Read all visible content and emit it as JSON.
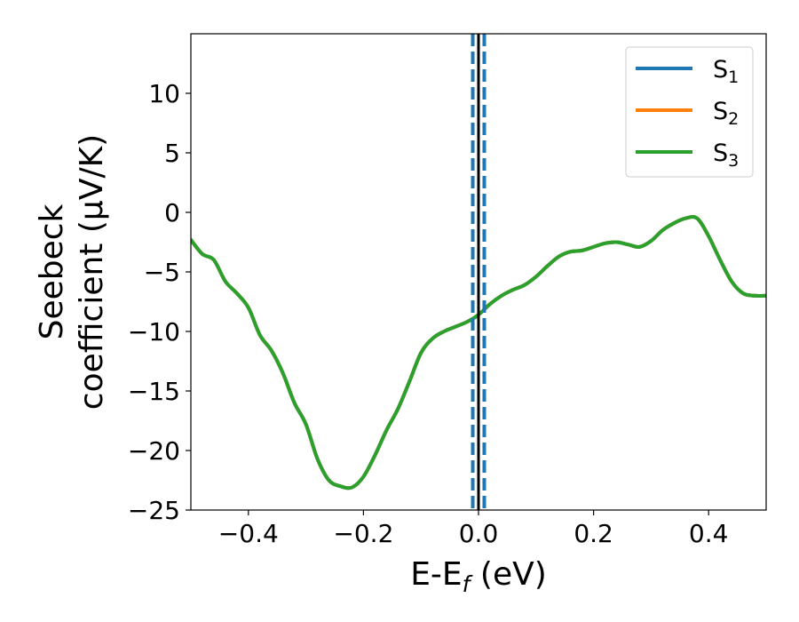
{
  "chart_data": {
    "type": "line",
    "xlabel": {
      "main": "E-E",
      "sub": "f",
      "tail": " (eV)"
    },
    "ylabel": {
      "line1": "Seebeck",
      "line2": "coefficient  (μV/K)"
    },
    "xlim": [
      -0.5,
      0.5
    ],
    "ylim": [
      -25,
      15
    ],
    "xticks": [
      -0.4,
      -0.2,
      0.0,
      0.2,
      0.4
    ],
    "xtick_labels": [
      "−0.4",
      "−0.2",
      "0.0",
      "0.2",
      "0.4"
    ],
    "yticks": [
      -25,
      -20,
      -15,
      -10,
      -5,
      0,
      5,
      10
    ],
    "ytick_labels": [
      "−25",
      "−20",
      "−15",
      "−10",
      "−5",
      "0",
      "5",
      "10"
    ],
    "grid": false,
    "legend_position": "top-right",
    "series": [
      {
        "name": "S",
        "sub": "1",
        "color": "#1f77b4",
        "same_as": "S3"
      },
      {
        "name": "S",
        "sub": "2",
        "color": "#ff7f0e",
        "same_as": "S3"
      },
      {
        "name": "S",
        "sub": "3",
        "color": "#2ca02c",
        "x": [
          -0.5,
          -0.48,
          -0.46,
          -0.44,
          -0.42,
          -0.4,
          -0.38,
          -0.36,
          -0.34,
          -0.32,
          -0.3,
          -0.28,
          -0.26,
          -0.24,
          -0.22,
          -0.2,
          -0.18,
          -0.16,
          -0.14,
          -0.12,
          -0.1,
          -0.08,
          -0.06,
          -0.04,
          -0.02,
          0.0,
          0.02,
          0.04,
          0.06,
          0.08,
          0.1,
          0.12,
          0.14,
          0.16,
          0.18,
          0.2,
          0.22,
          0.24,
          0.26,
          0.28,
          0.3,
          0.32,
          0.34,
          0.36,
          0.38,
          0.4,
          0.42,
          0.44,
          0.46,
          0.48,
          0.5
        ],
        "y": [
          -2.3,
          -3.5,
          -4.0,
          -5.8,
          -6.8,
          -8.0,
          -10.3,
          -11.6,
          -13.5,
          -16.0,
          -17.8,
          -20.7,
          -22.5,
          -23.0,
          -23.1,
          -22.2,
          -20.4,
          -18.3,
          -16.5,
          -14.2,
          -11.8,
          -10.6,
          -10.0,
          -9.6,
          -9.2,
          -8.6,
          -7.7,
          -7.0,
          -6.5,
          -6.1,
          -5.4,
          -4.5,
          -3.7,
          -3.3,
          -3.2,
          -2.9,
          -2.6,
          -2.5,
          -2.7,
          -2.9,
          -2.4,
          -1.5,
          -0.9,
          -0.5,
          -0.5,
          -2.0,
          -4.0,
          -5.8,
          -6.8,
          -7.0,
          -7.0
        ]
      }
    ],
    "vertical_lines": [
      {
        "x": 0.0,
        "color": "#000000",
        "style": "solid"
      },
      {
        "x": -0.01,
        "color": "#1f77b4",
        "style": "dashed"
      },
      {
        "x": 0.01,
        "color": "#1f77b4",
        "style": "dashed"
      }
    ]
  }
}
